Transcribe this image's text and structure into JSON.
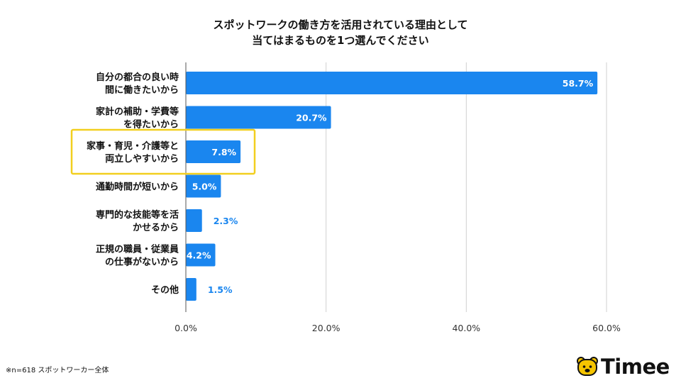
{
  "chart_data": {
    "type": "bar",
    "orientation": "horizontal",
    "title_lines": [
      "スポットワークの働き方を活用されている理由として",
      "当てはまるものを1つ選んでください"
    ],
    "categories": [
      [
        "自分の都合の良い時",
        "間に働きたいから"
      ],
      [
        "家計の補助・学費等",
        "を得たいから"
      ],
      [
        "家事・育児・介護等と",
        "両立しやすいから"
      ],
      [
        "通勤時間が短いから"
      ],
      [
        "専門的な技能等を活",
        "かせるから"
      ],
      [
        "正規の職員・従業員",
        "の仕事がないから"
      ],
      [
        "その他"
      ]
    ],
    "values": [
      58.7,
      20.7,
      7.8,
      5.0,
      2.3,
      4.2,
      1.5
    ],
    "value_labels": [
      "58.7%",
      "20.7%",
      "7.8%",
      "5.0%",
      "2.3%",
      "4.2%",
      "1.5%"
    ],
    "highlighted_index": 2,
    "xlim": [
      0,
      60
    ],
    "x_ticks": [
      0,
      20,
      40,
      60
    ],
    "x_tick_labels": [
      "0.0%",
      "20.0%",
      "40.0%",
      "60.0%"
    ],
    "grid": true,
    "xlabel": "",
    "ylabel": ""
  },
  "colors": {
    "bar": "#1a86ef",
    "inside_label": "#ffffff",
    "outside_label": "#1a86ef",
    "grid": "#d0d0d0",
    "highlight": "#f2cf1f",
    "logo_bear": "#f5c400"
  },
  "footnote": "※n=618 スポットワーカー全体",
  "logo": {
    "text": "Timee",
    "icon": "bear-face-icon"
  }
}
